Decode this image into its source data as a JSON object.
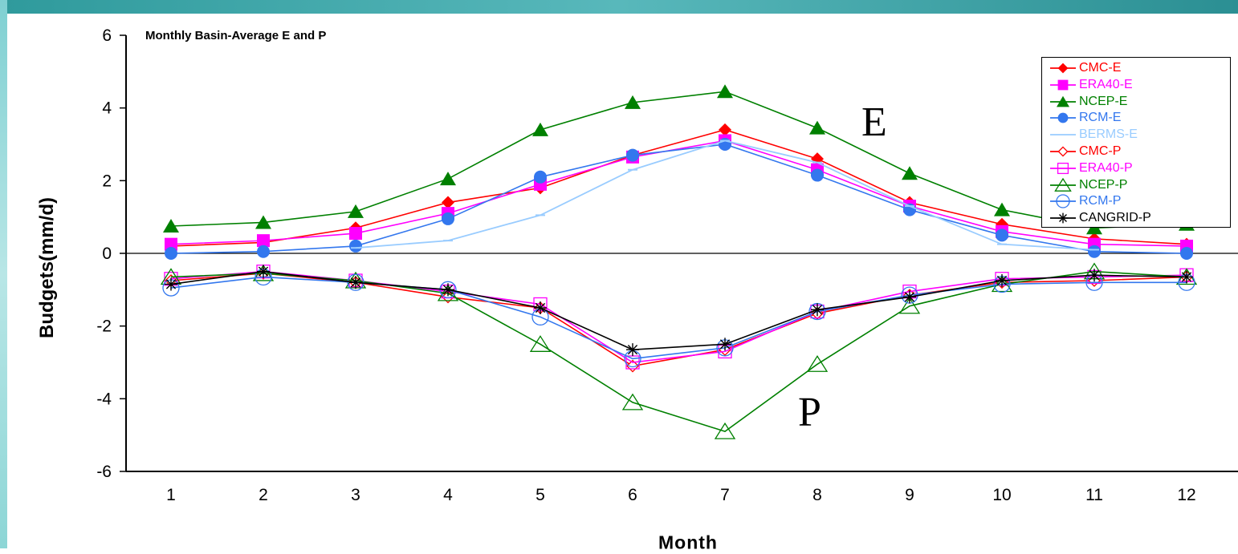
{
  "chart_data": {
    "type": "line",
    "title": "Monthly Basin-Average E and P",
    "xlabel": "Month",
    "ylabel": "Budgets(mm/d)",
    "annotations": [
      "E",
      "P"
    ],
    "categories": [
      "1",
      "2",
      "3",
      "4",
      "5",
      "6",
      "7",
      "8",
      "9",
      "10",
      "11",
      "12"
    ],
    "ylim": [
      -6,
      6
    ],
    "yticks": [
      "6",
      "4",
      "2",
      "0",
      "-2",
      "-4",
      "-6"
    ],
    "grid": false,
    "legend_position": "top-right",
    "series": [
      {
        "name": "CMC-E",
        "color": "#ff0000",
        "marker": "diamond-filled",
        "values": [
          0.2,
          0.3,
          0.7,
          1.4,
          1.8,
          2.7,
          3.4,
          2.6,
          1.4,
          0.8,
          0.4,
          0.25
        ]
      },
      {
        "name": "ERA40-E",
        "color": "#ff00ff",
        "marker": "square-filled",
        "values": [
          0.25,
          0.35,
          0.55,
          1.1,
          1.9,
          2.65,
          3.1,
          2.3,
          1.3,
          0.6,
          0.25,
          0.2
        ]
      },
      {
        "name": "NCEP-E",
        "color": "#008000",
        "marker": "triangle-filled",
        "values": [
          0.75,
          0.85,
          1.15,
          2.05,
          3.4,
          4.15,
          4.45,
          3.45,
          2.2,
          1.2,
          0.7,
          0.8
        ]
      },
      {
        "name": "RCM-E",
        "color": "#3377ee",
        "marker": "circle-filled",
        "values": [
          0.0,
          0.05,
          0.2,
          0.95,
          2.1,
          2.7,
          3.0,
          2.15,
          1.2,
          0.5,
          0.05,
          0.0
        ]
      },
      {
        "name": "BERMS-E",
        "color": "#99ccff",
        "marker": "dash",
        "values": [
          null,
          null,
          0.15,
          0.35,
          1.05,
          2.3,
          3.1,
          2.5,
          1.3,
          0.25,
          0.1,
          null
        ]
      },
      {
        "name": "CMC-P",
        "color": "#ff0000",
        "marker": "diamond-open",
        "values": [
          -0.75,
          -0.55,
          -0.8,
          -1.2,
          -1.5,
          -3.1,
          -2.65,
          -1.65,
          -1.15,
          -0.8,
          -0.75,
          -0.65
        ]
      },
      {
        "name": "ERA40-P",
        "color": "#ff00ff",
        "marker": "square-open",
        "values": [
          -0.7,
          -0.5,
          -0.75,
          -1.05,
          -1.4,
          -3.0,
          -2.7,
          -1.6,
          -1.05,
          -0.7,
          -0.65,
          -0.6
        ]
      },
      {
        "name": "NCEP-P",
        "color": "#008000",
        "marker": "triangle-open",
        "values": [
          -0.65,
          -0.55,
          -0.75,
          -1.1,
          -2.5,
          -4.1,
          -4.9,
          -3.05,
          -1.45,
          -0.85,
          -0.5,
          -0.65
        ]
      },
      {
        "name": "RCM-P",
        "color": "#3377ee",
        "marker": "circle-open",
        "values": [
          -0.95,
          -0.65,
          -0.8,
          -1.0,
          -1.75,
          -2.9,
          -2.6,
          -1.6,
          -1.15,
          -0.85,
          -0.8,
          -0.8
        ]
      },
      {
        "name": "CANGRID-P",
        "color": "#000000",
        "marker": "asterisk",
        "values": [
          -0.85,
          -0.5,
          -0.8,
          -1.0,
          -1.5,
          -2.65,
          -2.5,
          -1.55,
          -1.2,
          -0.75,
          -0.6,
          -0.65
        ]
      }
    ]
  }
}
